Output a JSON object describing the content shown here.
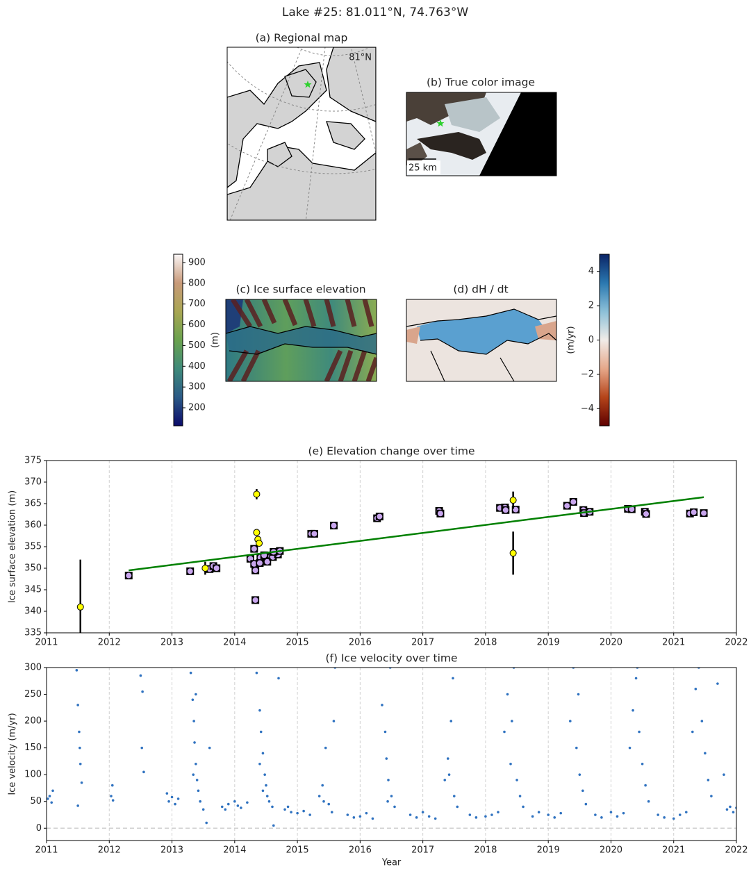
{
  "title": "Lake #25: 81.011°N, 74.763°W",
  "panels": [
    {
      "title": "(a) Regional map",
      "label": "81°N"
    },
    {
      "title": "(b) True color image",
      "label": "25 km"
    },
    {
      "title": "(c) Ice surface elevation"
    },
    {
      "title": "(d) dH / dt"
    }
  ],
  "chart_data": [
    {
      "type": "colorbar",
      "label": "(m)",
      "colors": [
        "#0b0b6a",
        "#2b5a86",
        "#3f8a7a",
        "#6aa24e",
        "#a9a653",
        "#c99a7a",
        "#faf6f6"
      ],
      "ylim": [
        113,
        940
      ],
      "yticks": [
        200,
        300,
        400,
        500,
        600,
        700,
        800,
        900
      ]
    },
    {
      "type": "colorbar",
      "label": "(m/yr)",
      "colors": [
        "#5e0000",
        "#b5441a",
        "#e6a88a",
        "#f1ece8",
        "#8cc0d8",
        "#2a78b0",
        "#0a2466"
      ],
      "ylim": [
        -5,
        5
      ],
      "yticks": [
        {
          "value": -4,
          "label": "−4"
        },
        {
          "value": -2,
          "label": "−2"
        },
        0,
        2,
        4
      ]
    },
    {
      "type": "scatter",
      "title": "(e) Elevation change over time",
      "y_label": "Ice surface elevation (m)",
      "xlim": [
        2011,
        2022
      ],
      "xticks": [
        2011,
        2012,
        2013,
        2014,
        2015,
        2016,
        2017,
        2018,
        2019,
        2020,
        2021,
        2022
      ],
      "ylim": [
        335,
        375
      ],
      "yticks": [
        335,
        340,
        345,
        350,
        355,
        360,
        365,
        370,
        375
      ],
      "grid": "x",
      "series": [
        {
          "color": "#c9a6ee",
          "edge": "#000000",
          "marker": "square",
          "x": [
            2012.31,
            2013.29,
            2013.6,
            2013.66,
            2013.71,
            2014.33,
            2014.33,
            2014.25,
            2014.41,
            2014.47,
            2014.58,
            2014.31,
            2014.31,
            2014.4,
            2014.52,
            2014.61,
            2014.69,
            2014.62,
            2014.72,
            2015.22,
            2015.27,
            2015.58,
            2016.27,
            2016.31,
            2017.26,
            2017.28,
            2018.23,
            2018.31,
            2018.48,
            2018.32,
            2019.3,
            2019.4,
            2019.56,
            2019.57,
            2019.66,
            2020.27,
            2020.33,
            2020.54,
            2020.56,
            2021.26,
            2021.32,
            2021.48
          ],
          "values": [
            348.3,
            349.3,
            349.8,
            350.5,
            350.0,
            342.6,
            349.5,
            352.2,
            352.5,
            353,
            352.8,
            354.5,
            351,
            351.2,
            351.5,
            352.6,
            353.2,
            353.8,
            354,
            358,
            358,
            359.9,
            361.6,
            362,
            363.3,
            362.7,
            364,
            364.1,
            363.6,
            363.5,
            364.5,
            365.4,
            363.5,
            362.8,
            363.1,
            363.8,
            363.7,
            363.1,
            362.6,
            362.7,
            363,
            362.8
          ]
        },
        {
          "color": "#ffff00",
          "edge": "#000000",
          "marker": "circle",
          "x": [
            2011.54,
            2014.35,
            2014.35,
            2014.37,
            2014.39,
            2013.53,
            2018.44,
            2018.44
          ],
          "values": [
            341,
            367.2,
            358.3,
            356.7,
            355.8,
            350,
            365.8,
            353.5
          ],
          "errors": [
            11,
            1.2,
            0.8,
            0.5,
            0.5,
            1.5,
            2,
            5
          ]
        },
        {
          "type": "line",
          "color": "#008000",
          "x": [
            2012.31,
            2021.48
          ],
          "values": [
            349.5,
            366.5
          ]
        }
      ]
    },
    {
      "type": "scatter",
      "title": "(f) Ice velocity over time",
      "x_label": "Year",
      "y_label": "Ice velocity (m/yr)",
      "xlim": [
        2011,
        2022
      ],
      "xticks": [
        2011,
        2012,
        2013,
        2014,
        2015,
        2016,
        2017,
        2018,
        2019,
        2020,
        2021,
        2022
      ],
      "ylim": [
        -23,
        300
      ],
      "yticks": [
        0,
        50,
        100,
        150,
        200,
        250,
        300
      ],
      "grid": "x",
      "reference_line": 0,
      "series": [
        {
          "color": "#2f72c0",
          "marker": "dot",
          "x": [
            2011.02,
            2011.05,
            2011.08,
            2011.1,
            2011.48,
            2011.5,
            2011.52,
            2011.54,
            2011.56,
            2011.5,
            2011.53,
            2012.03,
            2012.05,
            2012.06,
            2012.5,
            2012.52,
            2012.55,
            2012.53,
            2012.92,
            2012.95,
            2013.0,
            2013.05,
            2013.1,
            2013.3,
            2013.33,
            2013.35,
            2013.36,
            2013.38,
            2013.4,
            2013.42,
            2013.45,
            2013.5,
            2013.38,
            2013.34,
            2013.6,
            2013.55,
            2013.8,
            2013.85,
            2013.9,
            2014.0,
            2014.05,
            2014.1,
            2014.2,
            2014.35,
            2014.4,
            2014.42,
            2014.45,
            2014.48,
            2014.5,
            2014.52,
            2014.55,
            2014.6,
            2014.7,
            2014.4,
            2014.45,
            2014.62,
            2014.8,
            2014.9,
            2015.0,
            2015.1,
            2015.2,
            2014.85,
            2015.35,
            2015.4,
            2015.45,
            2015.42,
            2015.5,
            2015.55,
            2015.6,
            2015.58,
            2015.8,
            2015.9,
            2016.0,
            2016.1,
            2016.2,
            2016.35,
            2016.4,
            2016.42,
            2016.45,
            2016.5,
            2016.55,
            2016.48,
            2016.44,
            2016.8,
            2016.9,
            2017.0,
            2017.1,
            2017.2,
            2017.35,
            2017.4,
            2017.45,
            2017.48,
            2017.5,
            2017.55,
            2017.42,
            2017.75,
            2017.85,
            2018.0,
            2018.1,
            2018.2,
            2018.3,
            2018.35,
            2018.4,
            2018.45,
            2018.5,
            2018.55,
            2018.6,
            2018.42,
            2018.75,
            2018.85,
            2019.0,
            2019.1,
            2019.2,
            2019.35,
            2019.4,
            2019.45,
            2019.5,
            2019.55,
            2019.6,
            2019.48,
            2019.75,
            2019.85,
            2020.0,
            2020.1,
            2020.2,
            2020.3,
            2020.35,
            2020.4,
            2020.45,
            2020.5,
            2020.55,
            2020.6,
            2020.42,
            2020.75,
            2020.85,
            2021.0,
            2021.1,
            2021.2,
            2021.3,
            2021.35,
            2021.4,
            2021.45,
            2021.5,
            2021.55,
            2021.6,
            2021.7,
            2021.8,
            2021.85,
            2021.9,
            2021.95,
            2022.0
          ],
          "values": [
            55,
            60,
            48,
            70,
            295,
            230,
            180,
            120,
            85,
            42,
            150,
            60,
            80,
            52,
            285,
            150,
            105,
            255,
            65,
            50,
            58,
            45,
            55,
            290,
            240,
            200,
            160,
            120,
            90,
            70,
            50,
            35,
            250,
            100,
            150,
            10,
            40,
            35,
            45,
            50,
            42,
            38,
            48,
            290,
            220,
            180,
            140,
            100,
            80,
            60,
            50,
            40,
            280,
            120,
            70,
            5,
            35,
            30,
            28,
            32,
            25,
            40,
            60,
            80,
            150,
            50,
            45,
            30,
            300,
            200,
            25,
            20,
            22,
            28,
            18,
            230,
            180,
            130,
            90,
            60,
            40,
            300,
            50,
            25,
            20,
            30,
            22,
            18,
            90,
            130,
            200,
            280,
            60,
            40,
            100,
            25,
            20,
            22,
            25,
            30,
            180,
            250,
            120,
            300,
            90,
            60,
            40,
            200,
            22,
            30,
            25,
            20,
            28,
            200,
            300,
            150,
            100,
            70,
            45,
            250,
            25,
            20,
            30,
            22,
            28,
            150,
            220,
            280,
            180,
            120,
            80,
            50,
            300,
            25,
            20,
            18,
            25,
            30,
            180,
            260,
            300,
            200,
            140,
            90,
            60,
            270,
            100,
            35,
            40,
            30,
            38
          ]
        }
      ]
    }
  ]
}
